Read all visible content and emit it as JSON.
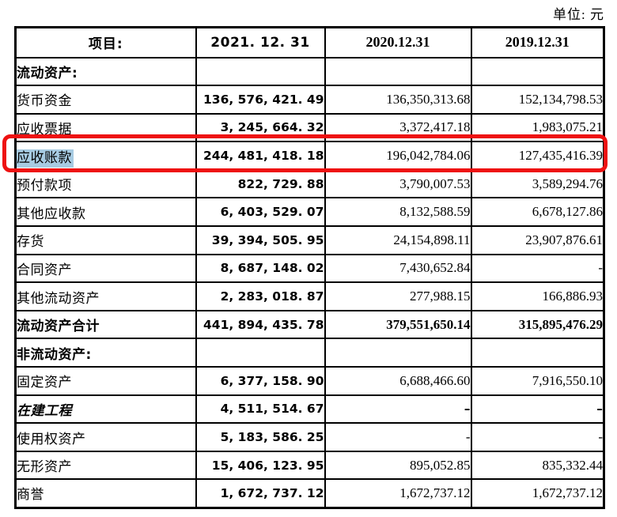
{
  "unit_label": "单位: 元",
  "colors": {
    "annotation_red": "#ee1111",
    "selection_blue": "#a7cbe2",
    "text": "#000000",
    "background": "#ffffff"
  },
  "annotations": {
    "red_box_row": "应收账款",
    "selected_text": "应收账款"
  },
  "table": {
    "headers": [
      "项目:",
      "2021. 12. 31",
      "2020.12.31",
      "2019.12.31"
    ],
    "rows": [
      {
        "label": "流动资产:",
        "v2021": "",
        "v2020": "",
        "v2019": "",
        "style": "section"
      },
      {
        "label": "货币资金",
        "v2021": "136, 576, 421. 49",
        "v2020": "136,350,313.68",
        "v2019": "152,134,798.53"
      },
      {
        "label": "应收票据",
        "v2021": "3, 245, 664. 32",
        "v2020": "3,372,417.18",
        "v2019": "1,983,075.21"
      },
      {
        "label": "应收账款",
        "v2021": "244, 481, 418. 18",
        "v2020": "196,042,784.06",
        "v2019": "127,435,416.39",
        "highlight": true
      },
      {
        "label": "预付款项",
        "v2021": "822, 729. 88",
        "v2020": "3,790,007.53",
        "v2019": "3,589,294.76"
      },
      {
        "label": "其他应收款",
        "v2021": "6, 403, 529. 07",
        "v2020": "8,132,588.59",
        "v2019": "6,678,127.86"
      },
      {
        "label": "存货",
        "v2021": "39, 394, 505. 95",
        "v2020": "24,154,898.11",
        "v2019": "23,907,876.61"
      },
      {
        "label": "合同资产",
        "v2021": "8, 687, 148. 02",
        "v2020": "7,430,652.84",
        "v2019": "-"
      },
      {
        "label": "其他流动资产",
        "v2021": "2, 283, 018. 87",
        "v2020": "277,988.15",
        "v2019": "166,886.93"
      },
      {
        "label": "流动资产合计",
        "v2021": "441, 894, 435. 78",
        "v2020": "379,551,650.14",
        "v2019": "315,895,476.29",
        "style": "total"
      },
      {
        "label": "非流动资产:",
        "v2021": "",
        "v2020": "",
        "v2019": "",
        "style": "section"
      },
      {
        "label": "固定资产",
        "v2021": "6, 377, 158. 90",
        "v2020": "6,688,466.60",
        "v2019": "7,916,550.10"
      },
      {
        "label": "在建工程",
        "v2021": "4, 511, 514. 67",
        "v2020": "–",
        "v2019": "–",
        "style": "bolditalic"
      },
      {
        "label": "使用权资产",
        "v2021": "5, 183, 586. 25",
        "v2020": "-",
        "v2019": "-"
      },
      {
        "label": "无形资产",
        "v2021": "15, 406, 123. 95",
        "v2020": "895,052.85",
        "v2019": "835,332.44"
      },
      {
        "label": "商誉",
        "v2021": "1, 672, 737. 12",
        "v2020": "1,672,737.12",
        "v2019": "1,672,737.12"
      }
    ]
  }
}
